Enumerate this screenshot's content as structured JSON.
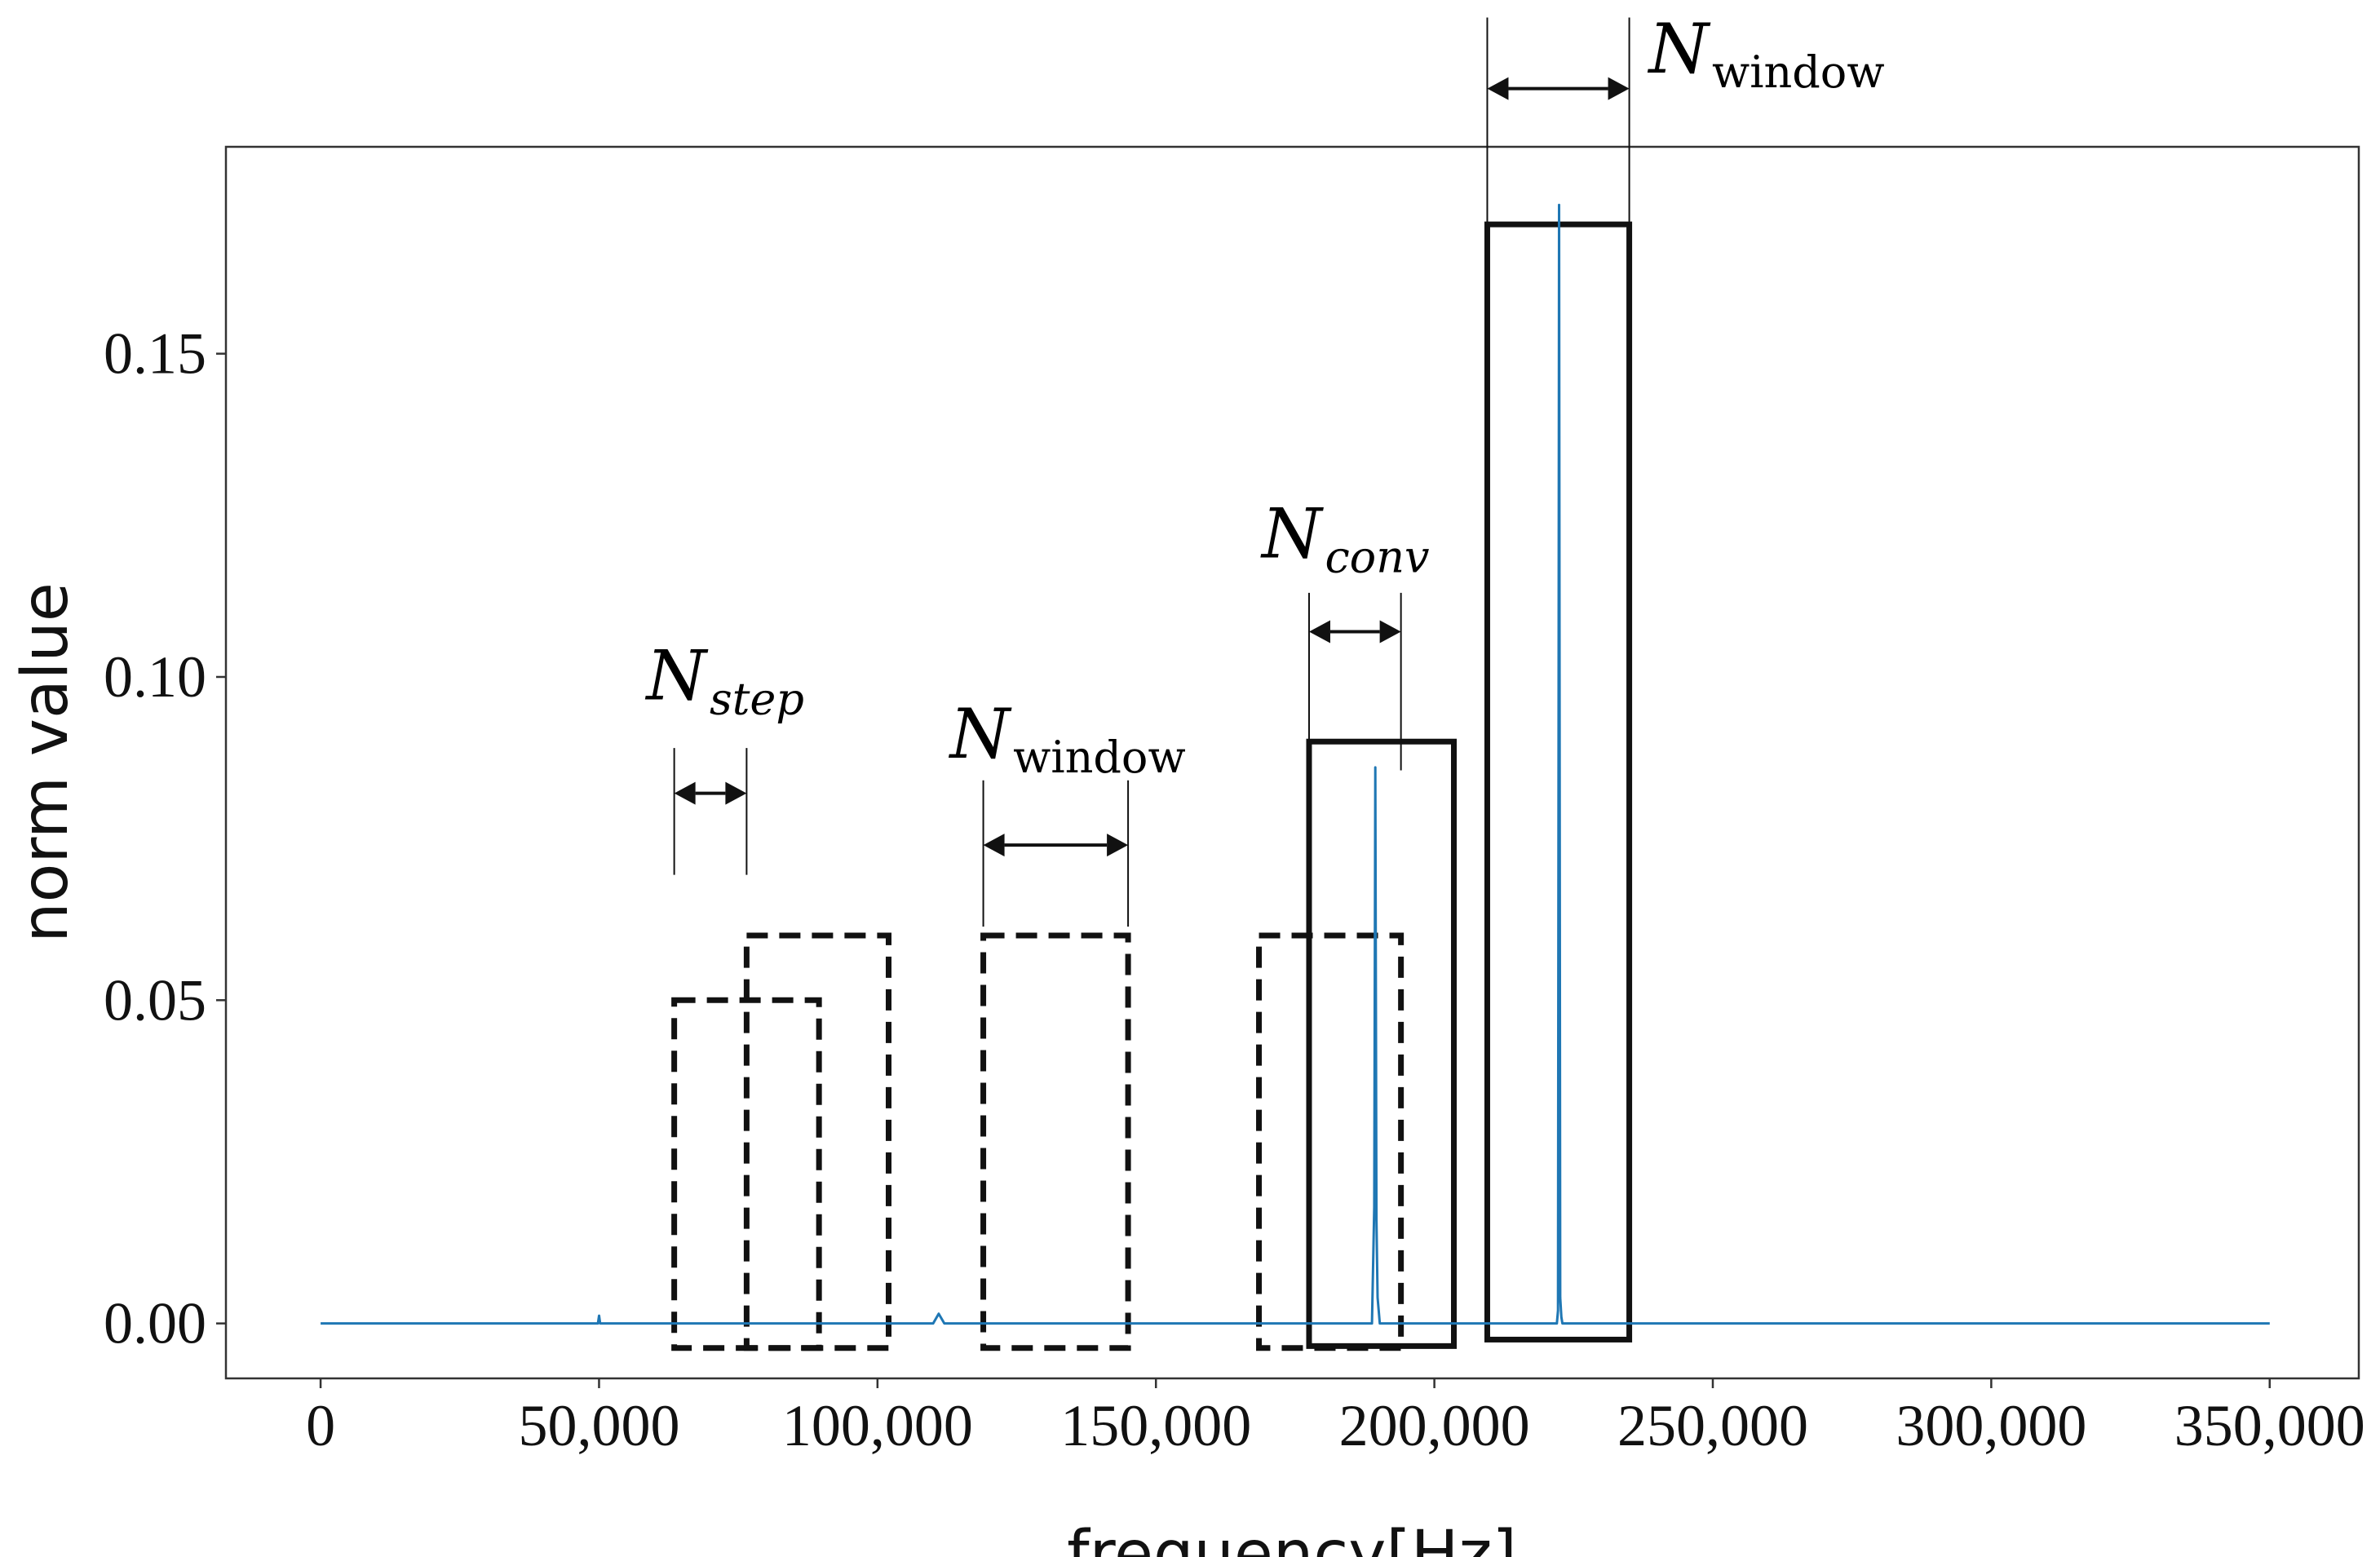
{
  "chart_data": {
    "type": "line",
    "xlabel": "frequency[Hz]",
    "ylabel": "norm value",
    "xlim": [
      -17000,
      366000
    ],
    "ylim": [
      -0.0085,
      0.182
    ],
    "xticks": [
      0,
      50000,
      100000,
      150000,
      200000,
      250000,
      300000,
      350000
    ],
    "xtick_labels": [
      "0",
      "50,000",
      "100,000",
      "150,000",
      "200,000",
      "250,000",
      "300,000",
      "350,000"
    ],
    "yticks": [
      0.0,
      0.05,
      0.1,
      0.15
    ],
    "ytick_labels": [
      "0.00",
      "0.05",
      "0.10",
      "0.15"
    ],
    "grid": false,
    "series": [
      {
        "color": "#1f77b4",
        "x": [
          0,
          49800,
          50000,
          50200,
          110000,
          111000,
          112000,
          150000,
          188800,
          189200,
          189400,
          189600,
          189800,
          190200,
          222000,
          222200,
          222400,
          222600,
          222800,
          223000,
          250000,
          300000,
          350000
        ],
        "y": [
          0,
          0,
          0.0012,
          0,
          0,
          0.0015,
          0,
          0,
          0,
          0.018,
          0.086,
          0.016,
          0.004,
          0,
          0,
          0.002,
          0.173,
          0.004,
          0.001,
          0,
          0,
          0,
          0
        ]
      }
    ],
    "annotations": {
      "boxes": [
        {
          "style": "dashed",
          "x0": 63500,
          "x1": 89500,
          "y0": -0.0038,
          "y1": 0.05
        },
        {
          "style": "dashed",
          "x0": 76500,
          "x1": 102000,
          "y0": -0.0038,
          "y1": 0.06
        },
        {
          "style": "dashed",
          "x0": 119000,
          "x1": 145000,
          "y0": -0.0038,
          "y1": 0.06
        },
        {
          "style": "dashed",
          "x0": 168500,
          "x1": 194000,
          "y0": -0.0038,
          "y1": 0.06
        },
        {
          "style": "solid",
          "x0": 177500,
          "x1": 203500,
          "y0": -0.0035,
          "y1": 0.09
        },
        {
          "style": "solid",
          "x0": 209500,
          "x1": 235000,
          "y0": -0.0025,
          "y1": 0.17
        }
      ],
      "arrows": [
        {
          "x0": 63500,
          "x1": 76500,
          "y": 0.082,
          "line_top": 0.089
        },
        {
          "x0": 119000,
          "x1": 145000,
          "y": 0.074,
          "line_top": 0.084
        },
        {
          "x0": 177500,
          "x1": 194000,
          "y": 0.107,
          "line_top": 0.113
        },
        {
          "x0": 209500,
          "x1": 235000,
          "y": 0.191,
          "line_top": 0.202
        }
      ],
      "labels": [
        {
          "main": "N",
          "sub": "step",
          "x": 58500,
          "y": 0.0965
        },
        {
          "main": "N",
          "sub": "window",
          "x": 113000,
          "y": 0.0875
        },
        {
          "main": "N",
          "sub": "conv",
          "x": 169000,
          "y": 0.1185
        },
        {
          "main": "N",
          "sub": "window",
          "x": 238500,
          "y": 0.1935
        }
      ]
    }
  }
}
